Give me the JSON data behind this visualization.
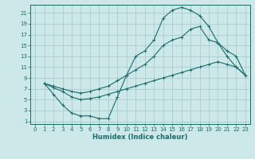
{
  "xlabel": "Humidex (Indice chaleur)",
  "bg_color": "#cce8e8",
  "grid_color": "#aacccc",
  "line_color": "#1a6b6b",
  "xlim": [
    -0.5,
    23.5
  ],
  "ylim": [
    0.5,
    22.5
  ],
  "xticks": [
    0,
    1,
    2,
    3,
    4,
    5,
    6,
    7,
    8,
    9,
    10,
    11,
    12,
    13,
    14,
    15,
    16,
    17,
    18,
    19,
    20,
    21,
    22,
    23
  ],
  "yticks": [
    1,
    3,
    5,
    7,
    9,
    11,
    13,
    15,
    17,
    19,
    21
  ],
  "curve1_x": [
    1,
    2,
    3,
    4,
    5,
    6,
    7,
    8,
    9,
    10,
    11,
    12,
    13,
    14,
    15,
    16,
    17,
    18,
    19,
    20,
    21,
    22,
    23
  ],
  "curve1_y": [
    8,
    6,
    4,
    2.5,
    2,
    2,
    1.5,
    1.5,
    5.5,
    9.5,
    13,
    14,
    16,
    20,
    21.5,
    22,
    21.5,
    20.5,
    18.5,
    15.5,
    13,
    11,
    9.5
  ],
  "curve2_x": [
    1,
    2,
    3,
    4,
    5,
    6,
    7,
    8,
    9,
    10,
    11,
    12,
    13,
    14,
    15,
    16,
    17,
    18,
    19,
    20,
    21,
    22,
    23
  ],
  "curve2_y": [
    8,
    7.5,
    7.0,
    6.5,
    6.2,
    6.5,
    7.0,
    7.5,
    8.5,
    9.5,
    10.5,
    11.5,
    13.0,
    15.0,
    16.0,
    16.5,
    18.0,
    18.5,
    16.0,
    15.5,
    14.0,
    13.0,
    9.5
  ],
  "curve3_x": [
    1,
    2,
    3,
    4,
    5,
    6,
    7,
    8,
    9,
    10,
    11,
    12,
    13,
    14,
    15,
    16,
    17,
    18,
    19,
    20,
    21,
    22,
    23
  ],
  "curve3_y": [
    8,
    7.2,
    6.5,
    5.5,
    5.0,
    5.2,
    5.5,
    6.0,
    6.5,
    7.0,
    7.5,
    8.0,
    8.5,
    9.0,
    9.5,
    10.0,
    10.5,
    11.0,
    11.5,
    12.0,
    11.5,
    11.0,
    9.5
  ]
}
